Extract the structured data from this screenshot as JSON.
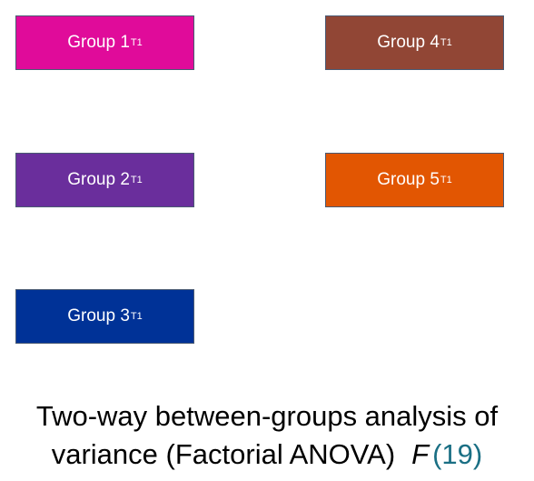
{
  "groups": [
    {
      "label": "Group 1",
      "subscript": "T1",
      "color": "#e00b9a"
    },
    {
      "label": "Group 2",
      "subscript": "T1",
      "color": "#6a2e9c"
    },
    {
      "label": "Group 3",
      "subscript": "T1",
      "color": "#003297"
    },
    {
      "label": "Group 4",
      "subscript": "T1",
      "color": "#914635"
    },
    {
      "label": "Group 5",
      "subscript": "T1",
      "color": "#e25602"
    }
  ],
  "caption": {
    "line1": "Two-way between-groups analysis of",
    "line2": "variance (Factorial ANOVA)",
    "symbol": "F",
    "number": "(19)",
    "number_color": "#1a6f84"
  }
}
